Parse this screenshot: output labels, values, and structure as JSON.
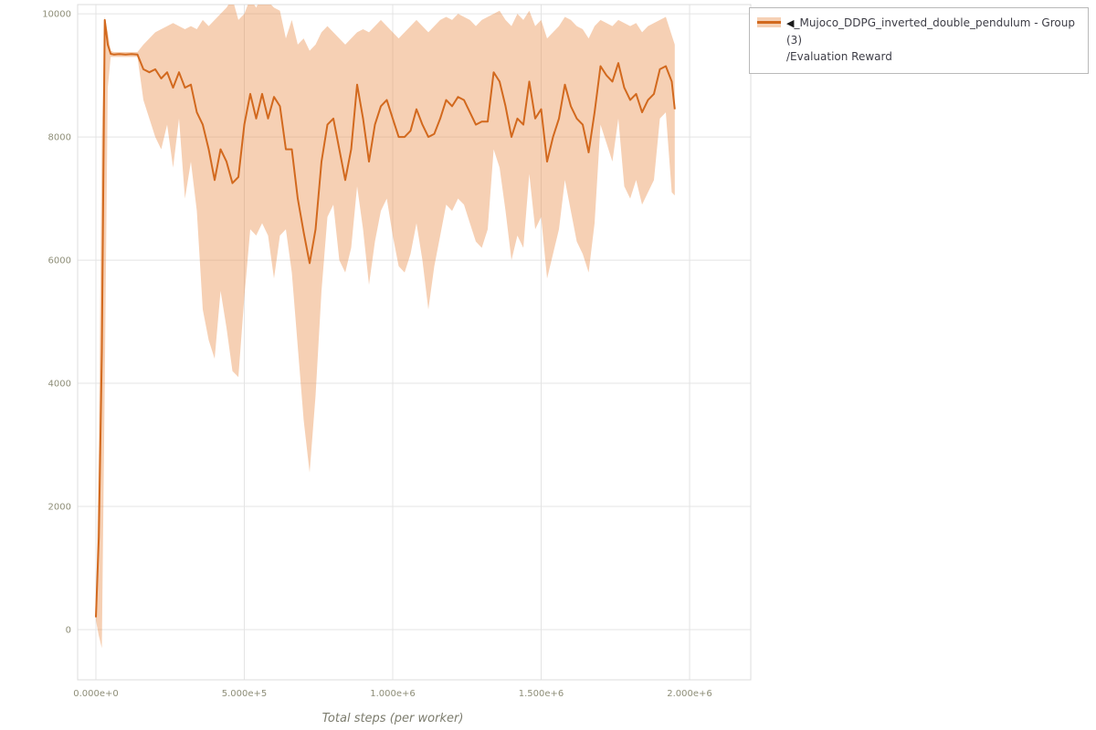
{
  "page": {
    "background_color": "#ffffff",
    "grid_color": "#e4e4e4",
    "border_color": "#dcdcdc",
    "tick_label_color": "#8e8e78"
  },
  "axes": {
    "x_title": "Total steps (per worker)"
  },
  "chart_data": {
    "type": "line",
    "title": "",
    "xlabel": "Total steps (per worker)",
    "ylabel": "",
    "grid": true,
    "legend_position": "top-right",
    "xlim": [
      -61500,
      2206000
    ],
    "ylim": [
      -815,
      10150
    ],
    "x_ticks": {
      "values": [
        0,
        500000,
        1000000,
        1500000,
        2000000
      ],
      "labels": [
        "0.000e+0",
        "5.000e+5",
        "1.000e+6",
        "1.500e+6",
        "2.000e+6"
      ]
    },
    "y_ticks": {
      "values": [
        0,
        2000,
        4000,
        6000,
        8000,
        10000
      ],
      "labels": [
        "0",
        "2000",
        "4000",
        "6000",
        "8000",
        "10000"
      ]
    },
    "legend": {
      "arrow": "◀",
      "line1": "_Mujoco_DDPG_inverted_double_pendulum - Group(3)",
      "line2": "/Evaluation Reward"
    },
    "series": [
      {
        "name": "_Mujoco_DDPG_inverted_double_pendulum - Group(3)/Evaluation Reward",
        "color": "#d2691e",
        "band_color": "#e8833a",
        "band_opacity": 0.38,
        "x": [
          0,
          10000,
          20000,
          30000,
          40000,
          50000,
          60000,
          80000,
          100000,
          120000,
          140000,
          160000,
          180000,
          200000,
          220000,
          240000,
          260000,
          280000,
          300000,
          320000,
          340000,
          360000,
          380000,
          400000,
          420000,
          440000,
          460000,
          480000,
          500000,
          520000,
          540000,
          560000,
          580000,
          600000,
          620000,
          640000,
          660000,
          680000,
          700000,
          720000,
          740000,
          760000,
          780000,
          800000,
          820000,
          840000,
          860000,
          880000,
          900000,
          920000,
          940000,
          960000,
          980000,
          1000000,
          1020000,
          1040000,
          1060000,
          1080000,
          1100000,
          1120000,
          1140000,
          1160000,
          1180000,
          1200000,
          1220000,
          1240000,
          1260000,
          1280000,
          1300000,
          1320000,
          1340000,
          1360000,
          1380000,
          1400000,
          1420000,
          1440000,
          1460000,
          1480000,
          1500000,
          1520000,
          1540000,
          1560000,
          1580000,
          1600000,
          1620000,
          1640000,
          1660000,
          1680000,
          1700000,
          1720000,
          1740000,
          1760000,
          1780000,
          1800000,
          1820000,
          1840000,
          1860000,
          1880000,
          1900000,
          1920000,
          1940000,
          1950000
        ],
        "mean": [
          200,
          1500,
          4500,
          9900,
          9500,
          9350,
          9340,
          9345,
          9340,
          9345,
          9340,
          9100,
          9050,
          9100,
          8950,
          9050,
          8800,
          9050,
          8800,
          8850,
          8400,
          8200,
          7800,
          7300,
          7800,
          7600,
          7250,
          7350,
          8200,
          8700,
          8300,
          8700,
          8300,
          8650,
          8500,
          7800,
          7800,
          7000,
          6450,
          5950,
          6500,
          7600,
          8200,
          8300,
          7800,
          7300,
          7800,
          8850,
          8300,
          7600,
          8200,
          8500,
          8600,
          8300,
          8000,
          8000,
          8100,
          8450,
          8200,
          8000,
          8050,
          8300,
          8600,
          8500,
          8650,
          8600,
          8400,
          8200,
          8250,
          8250,
          9050,
          8900,
          8500,
          8000,
          8300,
          8200,
          8900,
          8300,
          8450,
          7600,
          8000,
          8300,
          8850,
          8500,
          8300,
          8200,
          7750,
          8400,
          9150,
          9000,
          8900,
          9200,
          8800,
          8600,
          8700,
          8400,
          8600,
          8700,
          9100,
          9150,
          8900,
          8450
        ],
        "lower": [
          150,
          -100,
          -300,
          4000,
          8800,
          9300,
          9300,
          9300,
          9300,
          9300,
          9300,
          8600,
          8300,
          8000,
          7800,
          8200,
          7500,
          8300,
          7000,
          7600,
          6800,
          5200,
          4700,
          4400,
          5500,
          4900,
          4200,
          4100,
          5400,
          6500,
          6400,
          6600,
          6400,
          5700,
          6400,
          6500,
          5800,
          4600,
          3400,
          2550,
          3800,
          5500,
          6700,
          6900,
          6000,
          5800,
          6200,
          7200,
          6500,
          5600,
          6300,
          6800,
          7000,
          6400,
          5900,
          5800,
          6100,
          6600,
          6000,
          5200,
          5900,
          6400,
          6900,
          6800,
          7000,
          6900,
          6600,
          6300,
          6200,
          6500,
          7800,
          7500,
          6800,
          6000,
          6400,
          6200,
          7400,
          6500,
          6700,
          5700,
          6100,
          6500,
          7300,
          6800,
          6300,
          6100,
          5800,
          6600,
          8200,
          7900,
          7600,
          8300,
          7200,
          7000,
          7300,
          6900,
          7100,
          7300,
          8300,
          8400,
          7100,
          7050
        ],
        "upper": [
          250,
          3000,
          8000,
          9950,
          9700,
          9400,
          9380,
          9380,
          9380,
          9380,
          9380,
          9500,
          9600,
          9700,
          9750,
          9800,
          9850,
          9800,
          9750,
          9800,
          9750,
          9900,
          9800,
          9900,
          10000,
          10100,
          10250,
          9900,
          10000,
          10250,
          10100,
          10300,
          10200,
          10100,
          10050,
          9600,
          9900,
          9500,
          9600,
          9400,
          9500,
          9700,
          9800,
          9700,
          9600,
          9500,
          9600,
          9700,
          9750,
          9700,
          9800,
          9900,
          9800,
          9700,
          9600,
          9700,
          9800,
          9900,
          9800,
          9700,
          9800,
          9900,
          9950,
          9900,
          10000,
          9950,
          9900,
          9800,
          9900,
          9950,
          10000,
          10050,
          9900,
          9800,
          10000,
          9900,
          10050,
          9800,
          9900,
          9600,
          9700,
          9800,
          9950,
          9900,
          9800,
          9750,
          9600,
          9800,
          9900,
          9850,
          9800,
          9900,
          9850,
          9800,
          9850,
          9700,
          9800,
          9850,
          9900,
          9950,
          9650,
          9500
        ]
      }
    ]
  }
}
